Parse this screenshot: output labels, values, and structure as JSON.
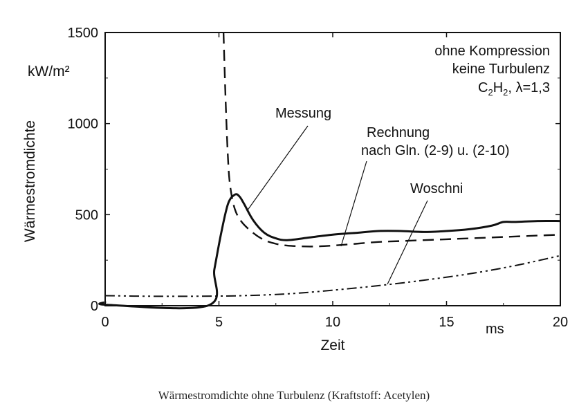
{
  "caption": "Wärmestromdichte ohne Turbulenz (Kraftstoff: Acetylen)",
  "chart_data": {
    "type": "line",
    "xlabel": "Zeit",
    "x_unit": "ms",
    "ylabel": "Wärmestromdichte",
    "y_unit": "kW/m²",
    "xlim": [
      0,
      20
    ],
    "ylim": [
      0,
      1500
    ],
    "x_ticks": [
      "0",
      "5",
      "10",
      "15",
      "20"
    ],
    "y_ticks": [
      "0",
      "500",
      "1000",
      "1500"
    ],
    "grid": false,
    "legend_position": "none",
    "conditions": {
      "line1": "ohne Kompression",
      "line2": "keine Turbulenz",
      "line3_species": "C",
      "line3_sub1": "2",
      "line3_mid": "H",
      "line3_sub2": "2",
      "line3_rest": ",  λ=1,3"
    },
    "series": [
      {
        "name": "Messung",
        "style": "solid",
        "x": [
          0,
          0.1,
          4.5,
          4.8,
          5.1,
          5.4,
          5.7,
          5.9,
          6.1,
          6.5,
          7.0,
          7.5,
          8.0,
          9.0,
          10.0,
          11.0,
          12.0,
          13.0,
          14.0,
          15.0,
          16.0,
          17.0,
          17.5,
          18.0,
          19.0,
          20.0
        ],
        "y": [
          20,
          5,
          0,
          200,
          400,
          560,
          610,
          600,
          560,
          470,
          400,
          370,
          360,
          375,
          390,
          400,
          410,
          410,
          405,
          410,
          420,
          440,
          460,
          460,
          465,
          465
        ]
      },
      {
        "name": "Rechnung nach Gln. (2-9) u. (2-10)",
        "style": "dashed",
        "x": [
          5.2,
          5.3,
          5.4,
          5.5,
          5.7,
          6.0,
          6.5,
          7.0,
          7.5,
          8.0,
          9.0,
          10.0,
          11.0,
          12.0,
          13.0,
          14.0,
          15.0,
          16.0,
          17.0,
          18.0,
          19.0,
          20.0
        ],
        "y": [
          1500,
          1100,
          800,
          650,
          530,
          460,
          400,
          360,
          340,
          330,
          325,
          330,
          340,
          350,
          355,
          360,
          365,
          370,
          375,
          380,
          385,
          390
        ]
      },
      {
        "name": "Woschni",
        "style": "dash-dot-dot",
        "x": [
          0,
          2,
          4,
          6,
          8,
          10,
          12,
          14,
          16,
          18,
          20
        ],
        "y": [
          55,
          52,
          52,
          55,
          65,
          85,
          110,
          140,
          175,
          220,
          275
        ]
      }
    ],
    "annotations": [
      {
        "text": "Messung",
        "points_to": "Messung"
      },
      {
        "text_line1": "Rechnung",
        "text_line2": "nach Gln. (2-9) u. (2-10)",
        "points_to": "Rechnung nach Gln. (2-9) u. (2-10)"
      },
      {
        "text": "Woschni",
        "points_to": "Woschni"
      }
    ],
    "colors": {
      "line": "#111111",
      "background": "#ffffff"
    }
  }
}
